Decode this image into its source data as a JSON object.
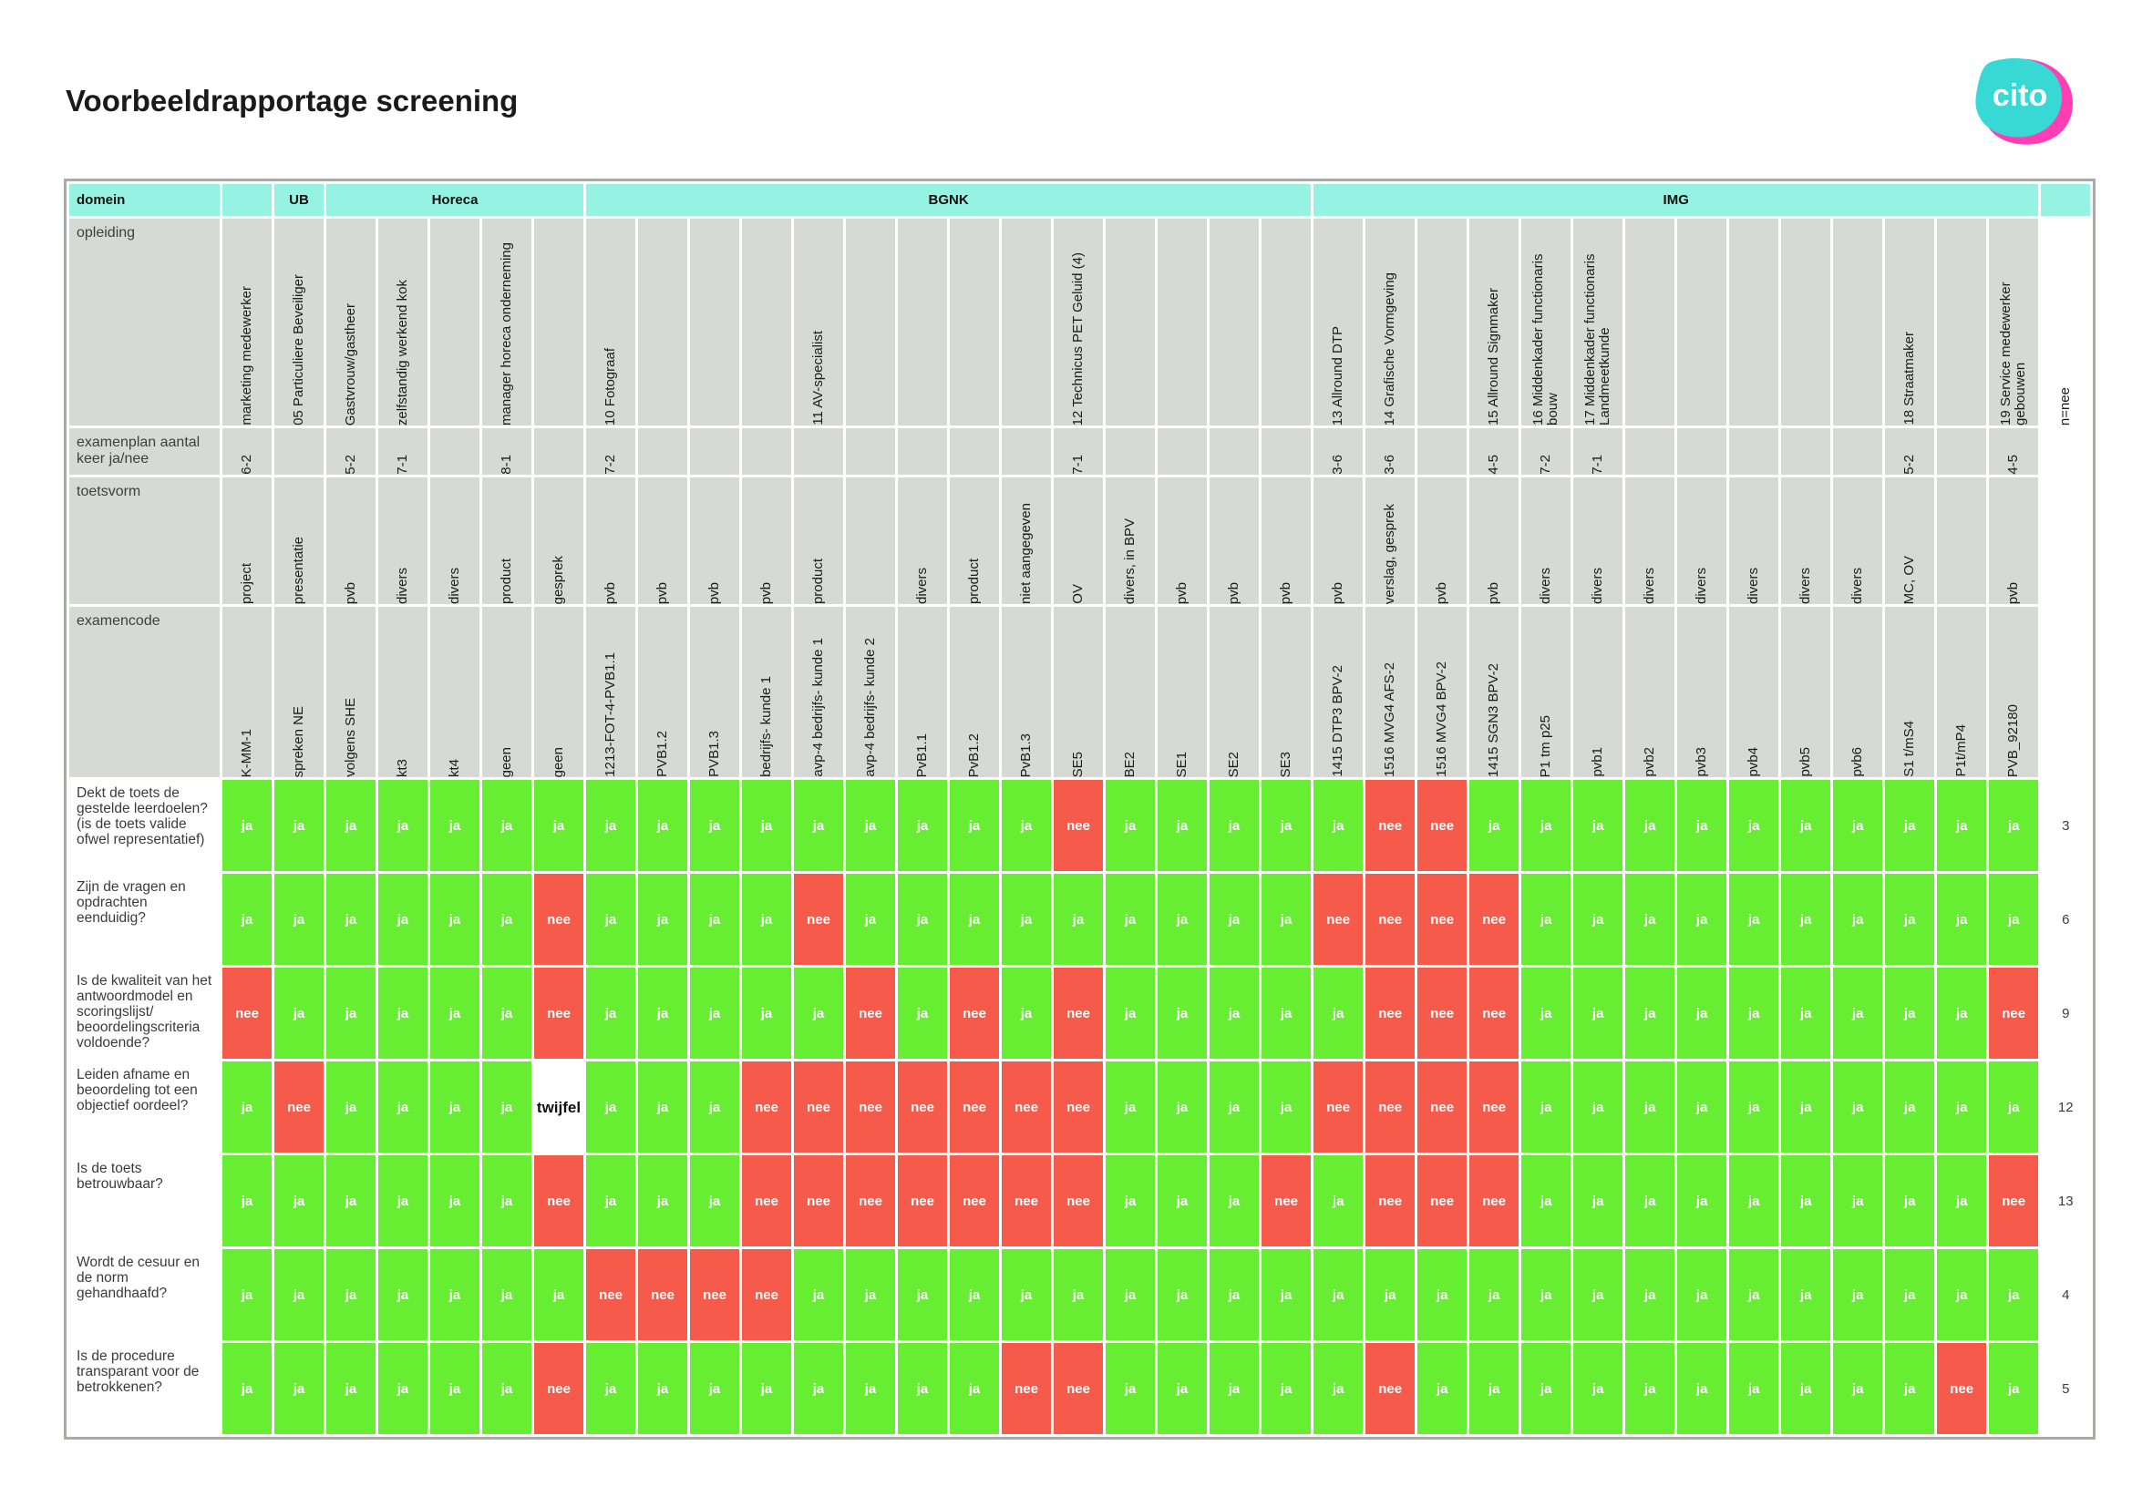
{
  "page": {
    "title": "Voorbeeldrapportage screening"
  },
  "logo": {
    "text": "cito",
    "colors": [
      "#38d8d4",
      "#ff3eb5"
    ]
  },
  "colors": {
    "ja": "#67ed32",
    "nee": "#f55a4a",
    "twijfel": "#ffffff",
    "domain_band": "#96f2e2",
    "header_gray": "#d6d9d4"
  },
  "row_labels": {
    "domein": "domein",
    "opleiding": "opleiding",
    "examenplan": "examenplan aantal keer  ja/nee",
    "toetsvorm": "toetsvorm",
    "examencode": "examencode"
  },
  "domains": [
    {
      "name": "",
      "span": 1
    },
    {
      "name": "UB",
      "span": 1
    },
    {
      "name": "Horeca",
      "span": 5
    },
    {
      "name": "BGNK",
      "span": 14
    },
    {
      "name": "IMG",
      "span": 14
    }
  ],
  "columns": [
    {
      "opleiding": "marketing medewerker",
      "examenplan": "6-2",
      "toetsvorm": "project",
      "examencode": "K-MM-1"
    },
    {
      "opleiding": "05 Particuliere Beveiliger",
      "examenplan": "",
      "toetsvorm": "presentatie",
      "examencode": "spreken NE"
    },
    {
      "opleiding": "Gastvrouw/gastheer",
      "examenplan": "5-2",
      "toetsvorm": "pvb",
      "examencode": "volgens SHE"
    },
    {
      "opleiding": "zelfstandig werkend kok",
      "examenplan": "7-1",
      "toetsvorm": "divers",
      "examencode": "kt3"
    },
    {
      "opleiding": "",
      "examenplan": "",
      "toetsvorm": "divers",
      "examencode": "kt4"
    },
    {
      "opleiding": "manager horeca onderneming",
      "examenplan": "8-1",
      "toetsvorm": "product",
      "examencode": "geen"
    },
    {
      "opleiding": "",
      "examenplan": "",
      "toetsvorm": "gesprek",
      "examencode": "geen"
    },
    {
      "opleiding": "10 Fotograaf",
      "examenplan": "7-2",
      "toetsvorm": "pvb",
      "examencode": "1213-FOT-4-PVB1.1"
    },
    {
      "opleiding": "",
      "examenplan": "",
      "toetsvorm": "pvb",
      "examencode": "PVB1.2"
    },
    {
      "opleiding": "",
      "examenplan": "",
      "toetsvorm": "pvb",
      "examencode": "PVB1.3"
    },
    {
      "opleiding": "",
      "examenplan": "",
      "toetsvorm": "pvb",
      "examencode": "bedrijfs- kunde 1"
    },
    {
      "opleiding": "11 AV-specialist",
      "examenplan": "",
      "toetsvorm": "product",
      "examencode": "avp-4 bedrijfs- kunde 1"
    },
    {
      "opleiding": "",
      "examenplan": "",
      "toetsvorm": "",
      "examencode": "avp-4 bedrijfs- kunde 2"
    },
    {
      "opleiding": "",
      "examenplan": "",
      "toetsvorm": "divers",
      "examencode": "PvB1.1"
    },
    {
      "opleiding": "",
      "examenplan": "",
      "toetsvorm": "product",
      "examencode": "PvB1.2"
    },
    {
      "opleiding": "",
      "examenplan": "",
      "toetsvorm": "niet aangegeven",
      "examencode": "PvB1.3"
    },
    {
      "opleiding": "12 Technicus PET Geluid (4)",
      "examenplan": "7-1",
      "toetsvorm": "OV",
      "examencode": "SE5"
    },
    {
      "opleiding": "",
      "examenplan": "",
      "toetsvorm": "divers, in BPV",
      "examencode": "BE2"
    },
    {
      "opleiding": "",
      "examenplan": "",
      "toetsvorm": "pvb",
      "examencode": "SE1"
    },
    {
      "opleiding": "",
      "examenplan": "",
      "toetsvorm": "pvb",
      "examencode": "SE2"
    },
    {
      "opleiding": "",
      "examenplan": "",
      "toetsvorm": "pvb",
      "examencode": "SE3"
    },
    {
      "opleiding": "13 Allround DTP",
      "examenplan": "3-6",
      "toetsvorm": "pvb",
      "examencode": "1415 DTP3 BPV-2"
    },
    {
      "opleiding": "14 Grafische Vormgeving",
      "examenplan": "3-6",
      "toetsvorm": "verslag, gesprek",
      "examencode": "1516 MVG4 AFS-2"
    },
    {
      "opleiding": "",
      "examenplan": "",
      "toetsvorm": "pvb",
      "examencode": "1516 MVG4 BPV-2"
    },
    {
      "opleiding": "15 Allround Signmaker",
      "examenplan": "4-5",
      "toetsvorm": "pvb",
      "examencode": "1415 SGN3 BPV-2"
    },
    {
      "opleiding": "16 Middenkader functionaris bouw",
      "examenplan": "7-2",
      "toetsvorm": "divers",
      "examencode": "P1 tm p25"
    },
    {
      "opleiding": "17 Middenkader functionaris Landmeetkunde",
      "examenplan": "7-1",
      "toetsvorm": "divers",
      "examencode": "pvb1"
    },
    {
      "opleiding": "",
      "examenplan": "",
      "toetsvorm": "divers",
      "examencode": "pvb2"
    },
    {
      "opleiding": "",
      "examenplan": "",
      "toetsvorm": "divers",
      "examencode": "pvb3"
    },
    {
      "opleiding": "",
      "examenplan": "",
      "toetsvorm": "divers",
      "examencode": "pvb4"
    },
    {
      "opleiding": "",
      "examenplan": "",
      "toetsvorm": "divers",
      "examencode": "pvb5"
    },
    {
      "opleiding": "",
      "examenplan": "",
      "toetsvorm": "divers",
      "examencode": "pvb6"
    },
    {
      "opleiding": "18 Straatmaker",
      "examenplan": "5-2",
      "toetsvorm": "MC, OV",
      "examencode": "S1 t/mS4"
    },
    {
      "opleiding": "",
      "examenplan": "",
      "toetsvorm": "",
      "examencode": "P1t/mP4"
    },
    {
      "opleiding": "19 Service medewerker gebouwen",
      "examenplan": "4-5",
      "toetsvorm": "pvb",
      "examencode": "PVB_92180"
    }
  ],
  "totals_header": "n=nee",
  "questions": [
    {
      "label": "Dekt de toets de gestelde leerdoelen? (is de toets valide ofwel representatief)",
      "total": "3",
      "values": [
        "ja",
        "ja",
        "ja",
        "ja",
        "ja",
        "ja",
        "ja",
        "ja",
        "ja",
        "ja",
        "ja",
        "ja",
        "ja",
        "ja",
        "ja",
        "ja",
        "nee",
        "ja",
        "ja",
        "ja",
        "ja",
        "ja",
        "nee",
        "nee",
        "ja",
        "ja",
        "ja",
        "ja",
        "ja",
        "ja",
        "ja",
        "ja",
        "ja",
        "ja",
        "ja"
      ]
    },
    {
      "label": "Zijn de vragen en opdrachten eenduidig?",
      "total": "6",
      "values": [
        "ja",
        "ja",
        "ja",
        "ja",
        "ja",
        "ja",
        "nee",
        "ja",
        "ja",
        "ja",
        "ja",
        "nee",
        "ja",
        "ja",
        "ja",
        "ja",
        "ja",
        "ja",
        "ja",
        "ja",
        "ja",
        "nee",
        "nee",
        "nee",
        "nee",
        "ja",
        "ja",
        "ja",
        "ja",
        "ja",
        "ja",
        "ja",
        "ja",
        "ja",
        "ja"
      ]
    },
    {
      "label": "Is de kwaliteit van het antwoordmodel en scoringslijst/ beoordelingscriteria voldoende?",
      "total": "9",
      "values": [
        "nee",
        "ja",
        "ja",
        "ja",
        "ja",
        "ja",
        "nee",
        "ja",
        "ja",
        "ja",
        "ja",
        "ja",
        "nee",
        "ja",
        "nee",
        "ja",
        "nee",
        "ja",
        "ja",
        "ja",
        "ja",
        "ja",
        "nee",
        "nee",
        "nee",
        "ja",
        "ja",
        "ja",
        "ja",
        "ja",
        "ja",
        "ja",
        "ja",
        "ja",
        "nee"
      ]
    },
    {
      "label": "Leiden afname en beoordeling tot een objectief oordeel?",
      "total": "12",
      "values": [
        "ja",
        "nee",
        "ja",
        "ja",
        "ja",
        "ja",
        "twijfel",
        "ja",
        "ja",
        "ja",
        "nee",
        "nee",
        "nee",
        "nee",
        "nee",
        "nee",
        "nee",
        "ja",
        "ja",
        "ja",
        "ja",
        "nee",
        "nee",
        "nee",
        "nee",
        "ja",
        "ja",
        "ja",
        "ja",
        "ja",
        "ja",
        "ja",
        "ja",
        "ja",
        "ja"
      ]
    },
    {
      "label": "Is de toets betrouwbaar?",
      "total": "13",
      "values": [
        "ja",
        "ja",
        "ja",
        "ja",
        "ja",
        "ja",
        "nee",
        "ja",
        "ja",
        "ja",
        "nee",
        "nee",
        "nee",
        "nee",
        "nee",
        "nee",
        "nee",
        "ja",
        "ja",
        "ja",
        "nee",
        "ja",
        "nee",
        "nee",
        "nee",
        "ja",
        "ja",
        "ja",
        "ja",
        "ja",
        "ja",
        "ja",
        "ja",
        "ja",
        "nee"
      ]
    },
    {
      "label": "Wordt de cesuur en de norm gehandhaafd?",
      "total": "4",
      "values": [
        "ja",
        "ja",
        "ja",
        "ja",
        "ja",
        "ja",
        "ja",
        "nee",
        "nee",
        "nee",
        "nee",
        "ja",
        "ja",
        "ja",
        "ja",
        "ja",
        "ja",
        "ja",
        "ja",
        "ja",
        "ja",
        "ja",
        "ja",
        "ja",
        "ja",
        "ja",
        "ja",
        "ja",
        "ja",
        "ja",
        "ja",
        "ja",
        "ja",
        "ja",
        "ja"
      ]
    },
    {
      "label": "Is de procedure transparant voor de betrokkenen?",
      "total": "5",
      "values": [
        "ja",
        "ja",
        "ja",
        "ja",
        "ja",
        "ja",
        "nee",
        "ja",
        "ja",
        "ja",
        "ja",
        "ja",
        "ja",
        "ja",
        "ja",
        "nee",
        "nee",
        "ja",
        "ja",
        "ja",
        "ja",
        "ja",
        "nee",
        "ja",
        "ja",
        "ja",
        "ja",
        "ja",
        "ja",
        "ja",
        "ja",
        "ja",
        "ja",
        "nee",
        "ja"
      ]
    }
  ]
}
